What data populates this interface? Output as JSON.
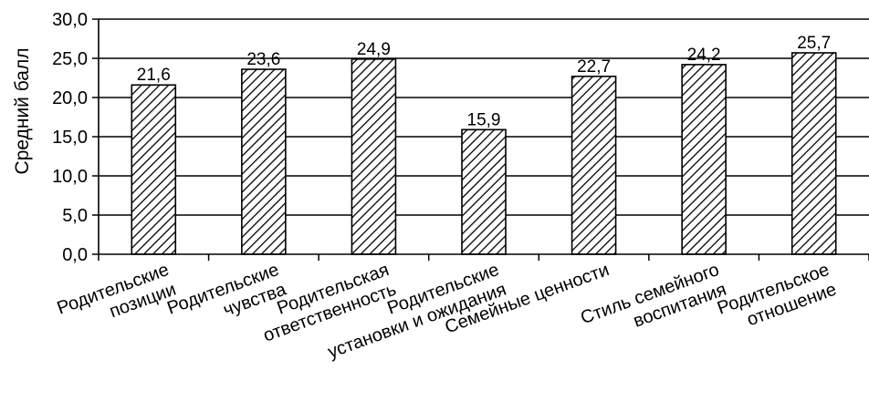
{
  "chart_data": {
    "type": "bar",
    "title": "",
    "xlabel": "",
    "ylabel": "Средний балл",
    "ylim": [
      0,
      30
    ],
    "ytick_step": 5,
    "ytick_labels": [
      "0,0",
      "5,0",
      "10,0",
      "15,0",
      "20,0",
      "25,0",
      "30,0"
    ],
    "grid": true,
    "legend": "none",
    "bar_pattern": "diagonal hatch",
    "colors": {
      "bar_fill": "#ffffff",
      "hatch": "#000000",
      "grid": "#000000",
      "axis": "#000000"
    },
    "categories": [
      [
        "Родительские",
        "позиции"
      ],
      [
        "Родительские",
        "чувства"
      ],
      [
        "Родительская",
        "ответственность"
      ],
      [
        "Родительские",
        "установки и ожидания"
      ],
      [
        "Семейные ценности"
      ],
      [
        "Стиль семейного",
        "воспитания"
      ],
      [
        "Родительское",
        "отношение"
      ]
    ],
    "values": [
      21.6,
      23.6,
      24.9,
      15.9,
      22.7,
      24.2,
      25.7
    ],
    "value_labels": [
      "21,6",
      "23,6",
      "24,9",
      "15,9",
      "22,7",
      "24,2",
      "25,7"
    ]
  }
}
